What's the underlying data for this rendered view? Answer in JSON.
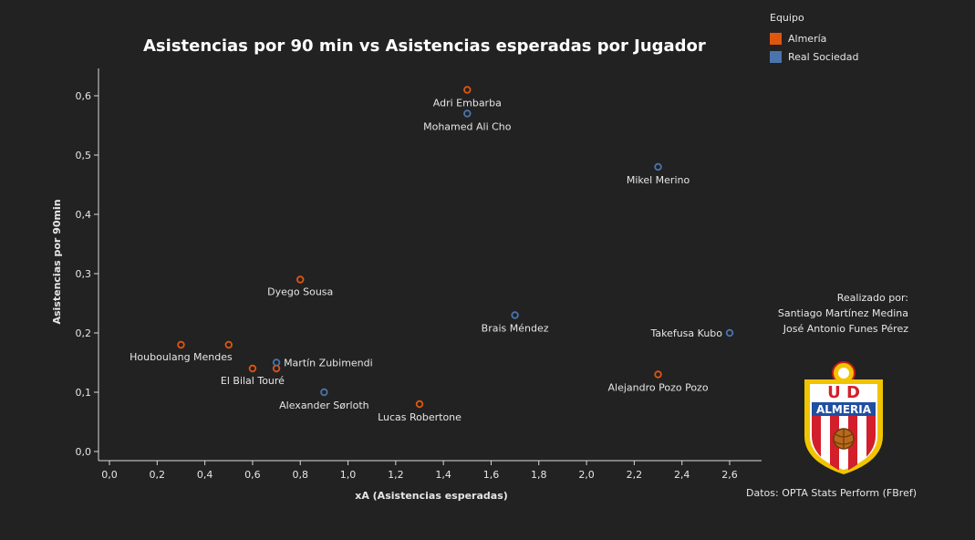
{
  "chart_data": {
    "type": "scatter",
    "title": "Asistencias por 90 min vs Asistencias esperadas por Jugador",
    "xlabel": "xA (Asistencias esperadas)",
    "ylabel": "Asistencias por 90min",
    "xlim": [
      0,
      2.6
    ],
    "ylim": [
      0,
      0.6
    ],
    "x_ticks": [
      "0,0",
      "0,2",
      "0,4",
      "0,6",
      "0,8",
      "1,0",
      "1,2",
      "1,4",
      "1,6",
      "1,8",
      "2,0",
      "2,2",
      "2,4",
      "2,6"
    ],
    "y_ticks": [
      "0,0",
      "0,1",
      "0,2",
      "0,3",
      "0,4",
      "0,5",
      "0,6"
    ],
    "grid": false,
    "legend": {
      "title": "Equipo",
      "placement": "top-right",
      "entries": [
        {
          "name": "Almería",
          "color": "#e0560f"
        },
        {
          "name": "Real Sociedad",
          "color": "#4a74ac"
        }
      ]
    },
    "series": [
      {
        "name": "Almería",
        "color": "#e0560f",
        "points": [
          {
            "label": "Adri Embarba",
            "x": 1.5,
            "y": 0.61
          },
          {
            "label": "Dyego Sousa",
            "x": 0.8,
            "y": 0.29
          },
          {
            "label": "Houboulang Mendes",
            "x": 0.3,
            "y": 0.18
          },
          {
            "label": "",
            "x": 0.5,
            "y": 0.18
          },
          {
            "label": "El Bilal Touré",
            "x": 0.6,
            "y": 0.14
          },
          {
            "label": "",
            "x": 0.7,
            "y": 0.14
          },
          {
            "label": "Lucas Robertone",
            "x": 1.3,
            "y": 0.08
          },
          {
            "label": "Alejandro Pozo Pozo",
            "x": 2.3,
            "y": 0.13
          }
        ]
      },
      {
        "name": "Real Sociedad",
        "color": "#4a74ac",
        "points": [
          {
            "label": "Mohamed Ali Cho",
            "x": 1.5,
            "y": 0.57
          },
          {
            "label": "Mikel Merino",
            "x": 2.3,
            "y": 0.48
          },
          {
            "label": "Brais Méndez",
            "x": 1.7,
            "y": 0.23
          },
          {
            "label": "Takefusa Kubo",
            "x": 2.6,
            "y": 0.2
          },
          {
            "label": "Martín Zubimendi",
            "x": 0.7,
            "y": 0.15
          },
          {
            "label": "Alexander Sørloth",
            "x": 0.9,
            "y": 0.1
          }
        ]
      }
    ]
  },
  "credits": {
    "heading": "Realizado por:",
    "author1": "Santiago Martínez Medina",
    "author2": "José Antonio Funes Pérez"
  },
  "source": "Datos: OPTA Stats Perform (FBref)",
  "logo": {
    "icon": "ud-almeria-crest-icon",
    "text_top": "U D",
    "text_band": "ALMERIA"
  }
}
